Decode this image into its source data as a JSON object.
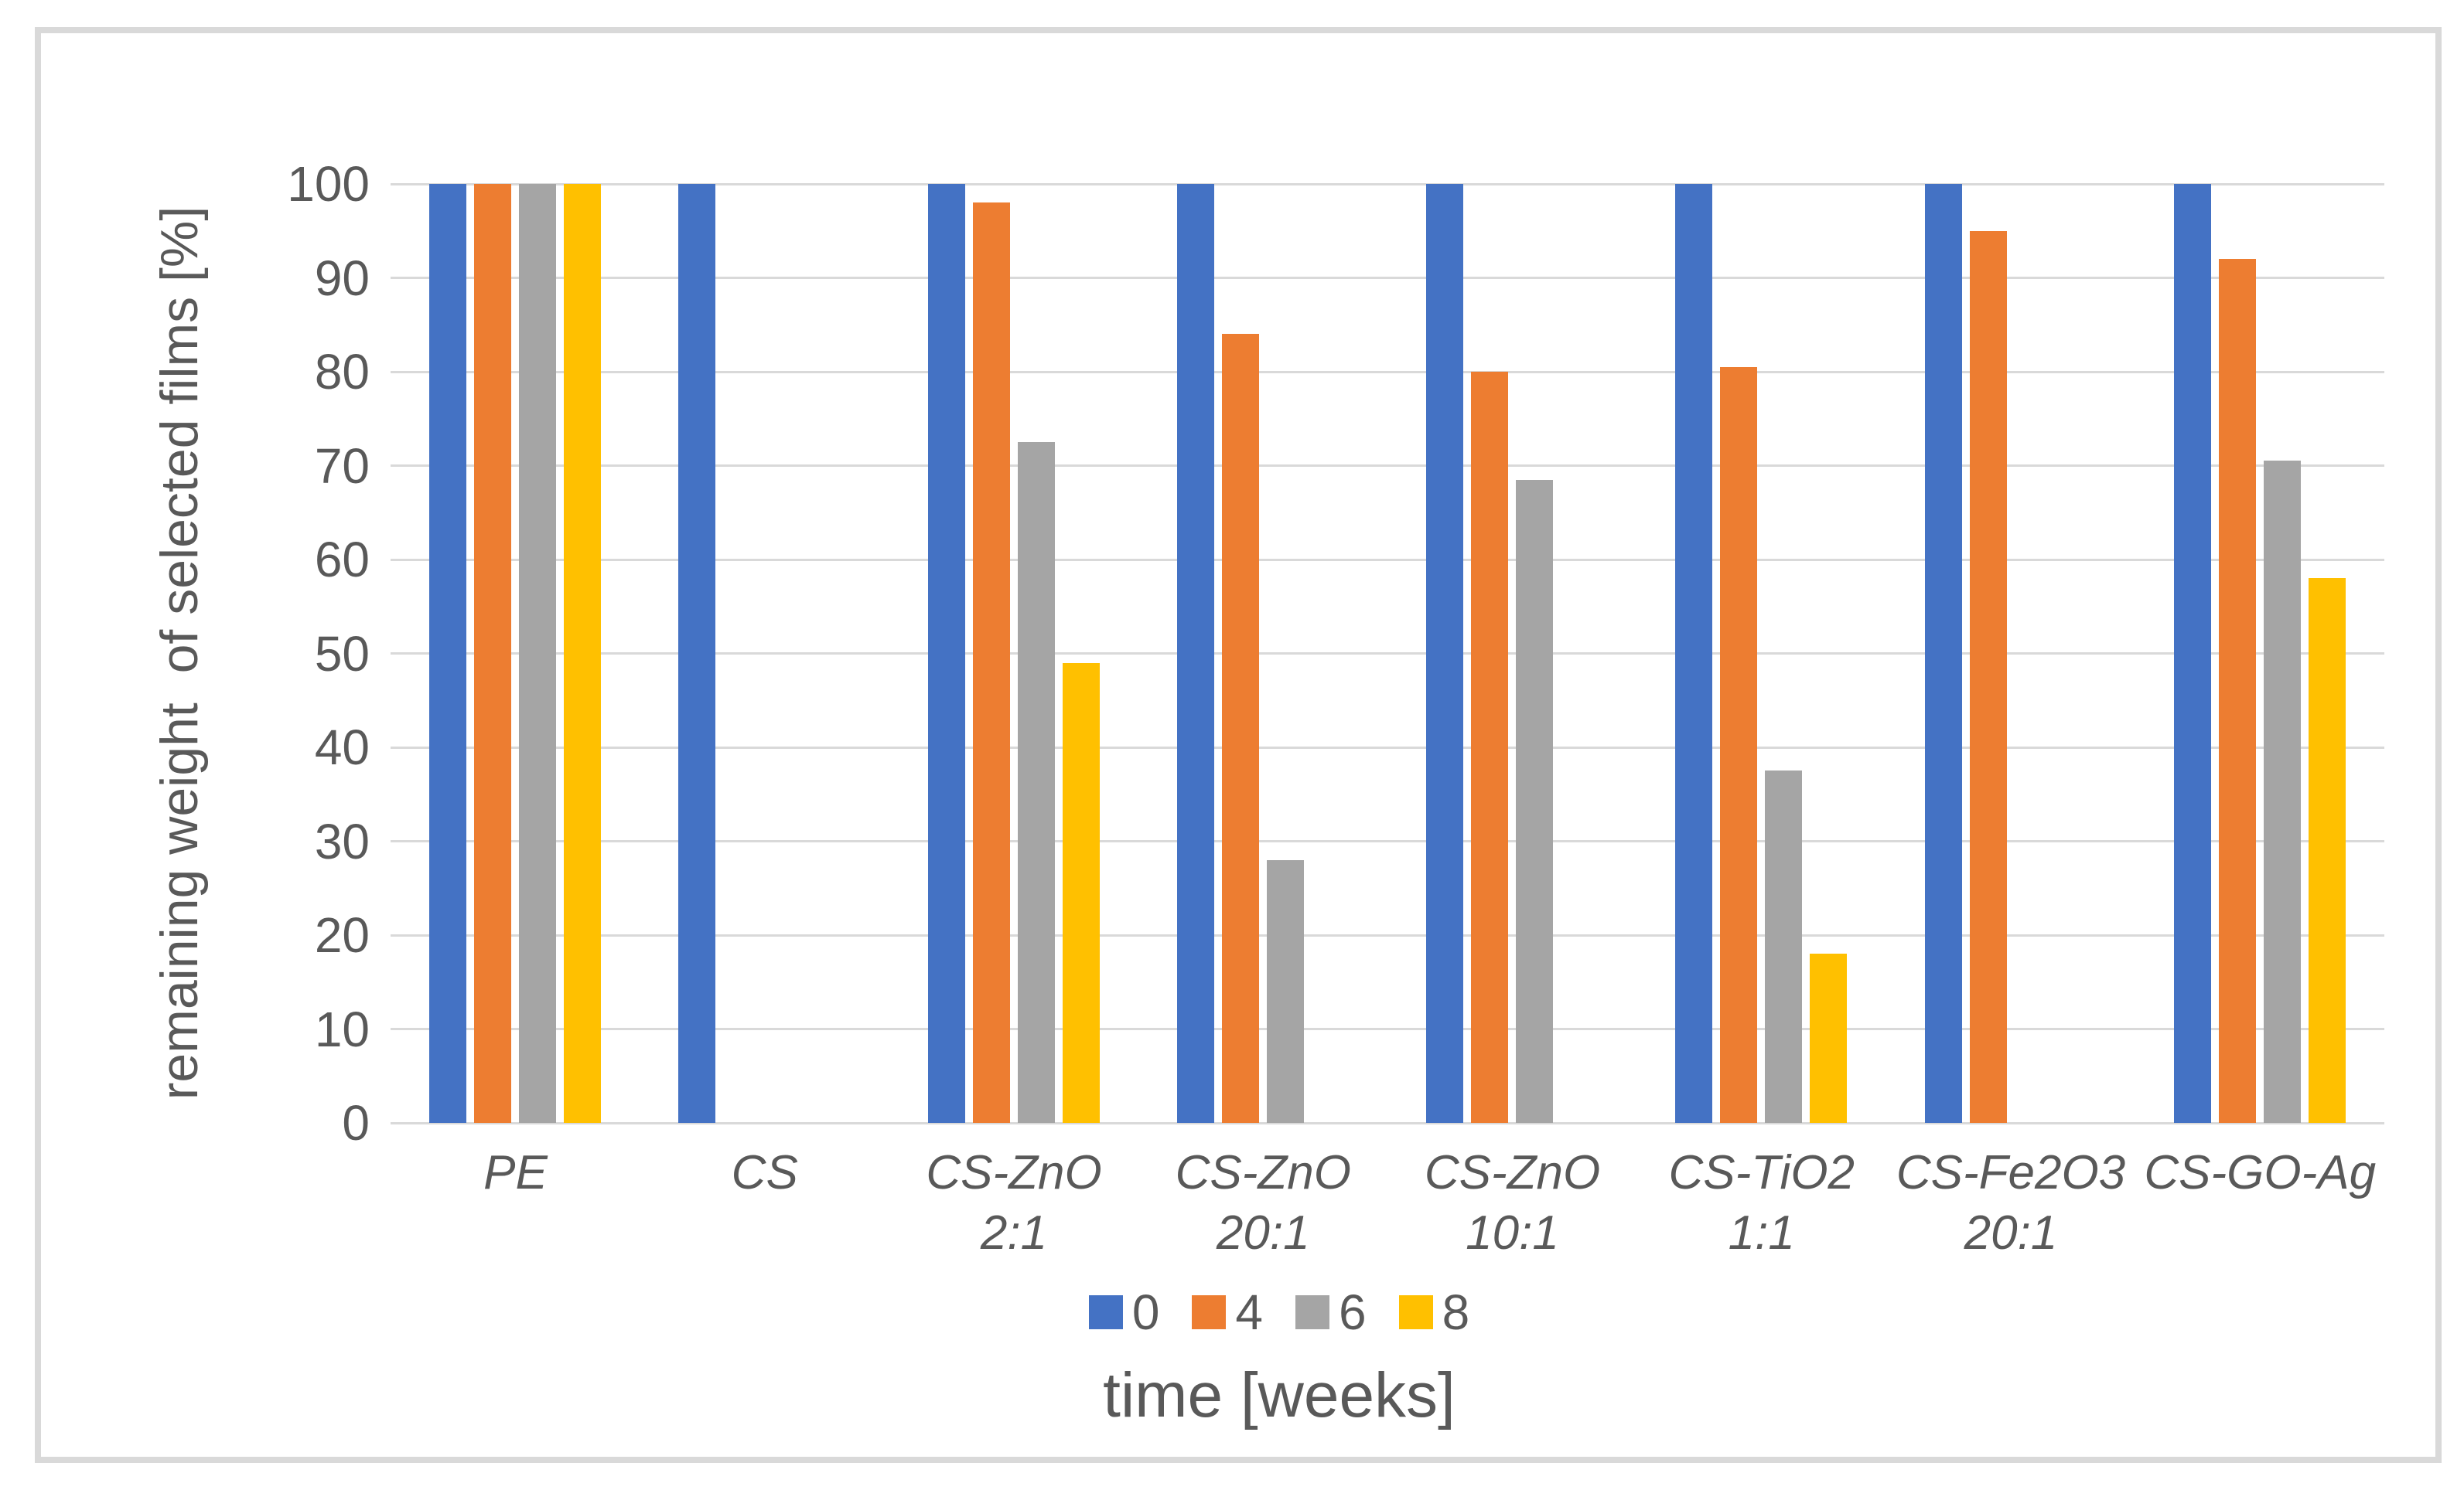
{
  "figure": {
    "frame_color": "#D9D9D9",
    "background": "#FFFFFF",
    "text_color": "#595959",
    "grid_color": "#D9D9D9"
  },
  "chart_data": {
    "type": "bar",
    "title": "",
    "ylabel": "remaining weight  of selected films [%]",
    "xlabel": "time [weeks]",
    "ylim": [
      0,
      100
    ],
    "yticks": [
      0,
      10,
      20,
      30,
      40,
      50,
      60,
      70,
      80,
      90,
      100
    ],
    "grid": true,
    "legend_position": "bottom",
    "legend_title": "",
    "categories": [
      "PE",
      "CS",
      "CS-ZnO  2:1",
      "CS-ZnO\n20:1",
      "CS-ZnO\n10:1",
      "CS-TiO2\n1:1",
      "CS-Fe2O3\n20:1",
      "CS-GO-Ag"
    ],
    "series": [
      {
        "name": "0",
        "color": "#4472C4",
        "values": [
          100,
          100,
          100,
          100,
          100,
          100,
          100,
          100
        ]
      },
      {
        "name": "4",
        "color": "#ED7D31",
        "values": [
          100,
          0,
          98,
          84,
          80,
          80.5,
          95,
          92
        ]
      },
      {
        "name": "6",
        "color": "#A5A5A5",
        "values": [
          100,
          0,
          72.5,
          28,
          68.5,
          37.5,
          0,
          70.5
        ]
      },
      {
        "name": "8",
        "color": "#FFC000",
        "values": [
          100,
          0,
          49,
          0,
          0,
          18,
          0,
          58
        ]
      }
    ]
  }
}
